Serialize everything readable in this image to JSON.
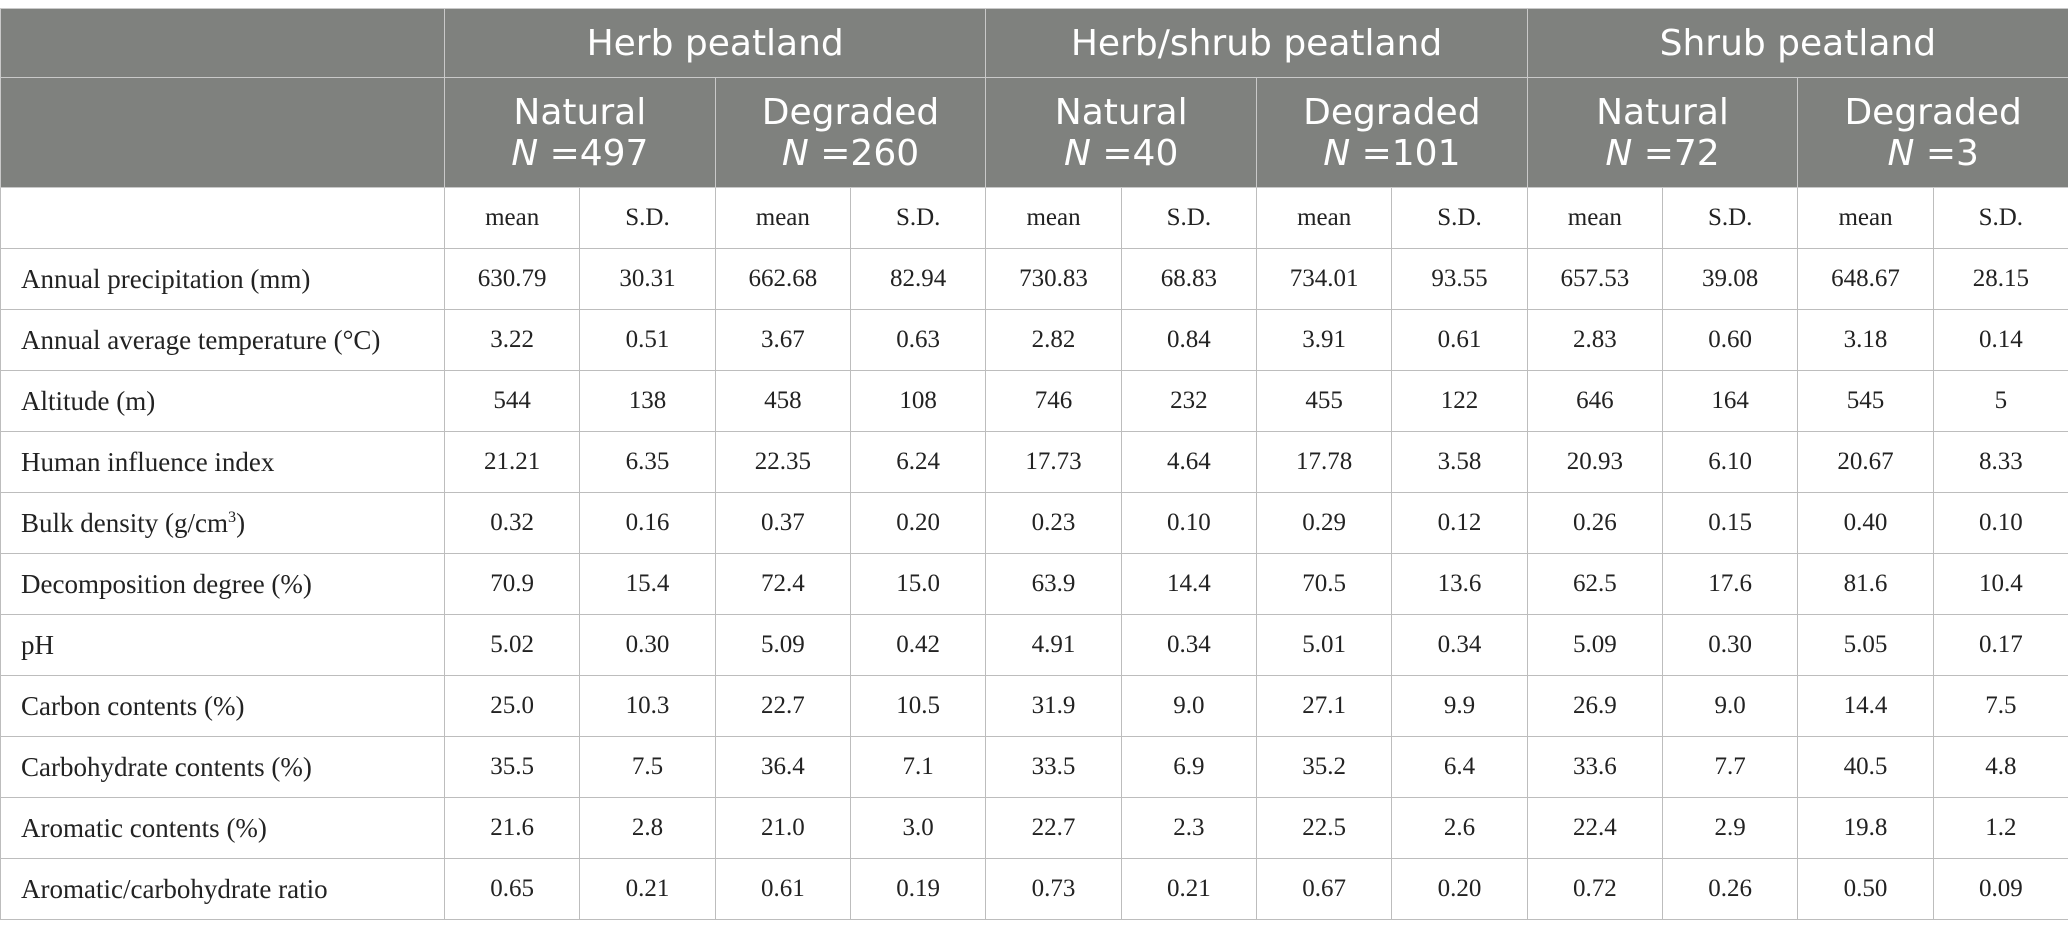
{
  "table": {
    "groups": [
      "Herb peatland",
      "Herb/shrub peatland",
      "Shrub peatland"
    ],
    "subgroups": [
      {
        "status": "Natural",
        "n_prefix": "N",
        "n_value": " =497"
      },
      {
        "status": "Degraded",
        "n_prefix": "N",
        "n_value": " =260"
      },
      {
        "status": "Natural",
        "n_prefix": "N",
        "n_value": " =40"
      },
      {
        "status": "Degraded",
        "n_prefix": "N",
        "n_value": " =101"
      },
      {
        "status": "Natural",
        "n_prefix": "N",
        "n_value": " =72"
      },
      {
        "status": "Degraded",
        "n_prefix": "N",
        "n_value": " =3"
      }
    ],
    "stat_labels": [
      "mean",
      "S.D."
    ],
    "rows": [
      {
        "label": "Annual precipitation (mm)",
        "values": [
          "630.79",
          "30.31",
          "662.68",
          "82.94",
          "730.83",
          "68.83",
          "734.01",
          "93.55",
          "657.53",
          "39.08",
          "648.67",
          "28.15"
        ]
      },
      {
        "label": "Annual average temperature (°C)",
        "values": [
          "3.22",
          "0.51",
          "3.67",
          "0.63",
          "2.82",
          "0.84",
          "3.91",
          "0.61",
          "2.83",
          "0.60",
          "3.18",
          "0.14"
        ]
      },
      {
        "label": "Altitude (m)",
        "values": [
          "544",
          "138",
          "458",
          "108",
          "746",
          "232",
          "455",
          "122",
          "646",
          "164",
          "545",
          "5"
        ]
      },
      {
        "label": "Human influence index",
        "values": [
          "21.21",
          "6.35",
          "22.35",
          "6.24",
          "17.73",
          "4.64",
          "17.78",
          "3.58",
          "20.93",
          "6.10",
          "20.67",
          "8.33"
        ]
      },
      {
        "label": "Bulk density (g/cm",
        "label_sup": "3",
        "label_after": ")",
        "values": [
          "0.32",
          "0.16",
          "0.37",
          "0.20",
          "0.23",
          "0.10",
          "0.29",
          "0.12",
          "0.26",
          "0.15",
          "0.40",
          "0.10"
        ]
      },
      {
        "label": "Decomposition degree (%)",
        "values": [
          "70.9",
          "15.4",
          "72.4",
          "15.0",
          "63.9",
          "14.4",
          "70.5",
          "13.6",
          "62.5",
          "17.6",
          "81.6",
          "10.4"
        ]
      },
      {
        "label": "pH",
        "values": [
          "5.02",
          "0.30",
          "5.09",
          "0.42",
          "4.91",
          "0.34",
          "5.01",
          "0.34",
          "5.09",
          "0.30",
          "5.05",
          "0.17"
        ]
      },
      {
        "label": "Carbon contents (%)",
        "values": [
          "25.0",
          "10.3",
          "22.7",
          "10.5",
          "31.9",
          "9.0",
          "27.1",
          "9.9",
          "26.9",
          "9.0",
          "14.4",
          "7.5"
        ]
      },
      {
        "label": "Carbohydrate contents (%)",
        "values": [
          "35.5",
          "7.5",
          "36.4",
          "7.1",
          "33.5",
          "6.9",
          "35.2",
          "6.4",
          "33.6",
          "7.7",
          "40.5",
          "4.8"
        ]
      },
      {
        "label": "Aromatic contents (%)",
        "values": [
          "21.6",
          "2.8",
          "21.0",
          "3.0",
          "22.7",
          "2.3",
          "22.5",
          "2.6",
          "22.4",
          "2.9",
          "19.8",
          "1.2"
        ]
      },
      {
        "label": "Aromatic/carbohydrate ratio",
        "values": [
          "0.65",
          "0.21",
          "0.61",
          "0.19",
          "0.73",
          "0.21",
          "0.67",
          "0.20",
          "0.72",
          "0.26",
          "0.50",
          "0.09"
        ]
      }
    ]
  }
}
